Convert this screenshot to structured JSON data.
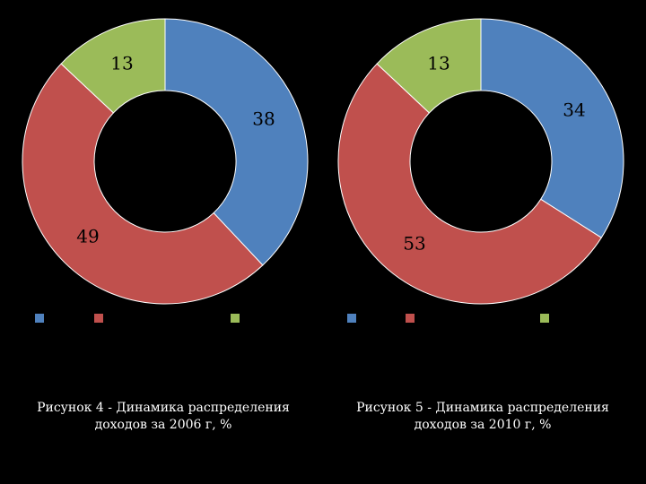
{
  "chart_data": [
    {
      "type": "pie",
      "donut": true,
      "categories": [
        "",
        "",
        ""
      ],
      "values": [
        38,
        49,
        13
      ],
      "colors": [
        "#4f81bd",
        "#c0504d",
        "#9bbb59"
      ],
      "data_labels": [
        "38",
        "49",
        "13"
      ],
      "legend": "bottom",
      "caption": {
        "line1": "Рисунок 4 - Динамика распределения",
        "line2": "доходов за 2006 г, %"
      }
    },
    {
      "type": "pie",
      "donut": true,
      "categories": [
        "",
        "",
        ""
      ],
      "values": [
        34,
        53,
        13
      ],
      "colors": [
        "#4f81bd",
        "#c0504d",
        "#9bbb59"
      ],
      "data_labels": [
        "34",
        "53",
        "13"
      ],
      "legend": "bottom",
      "caption": {
        "line1": "Рисунок 5 - Динамика распределения",
        "line2": "доходов за 2010 г, %"
      }
    }
  ]
}
